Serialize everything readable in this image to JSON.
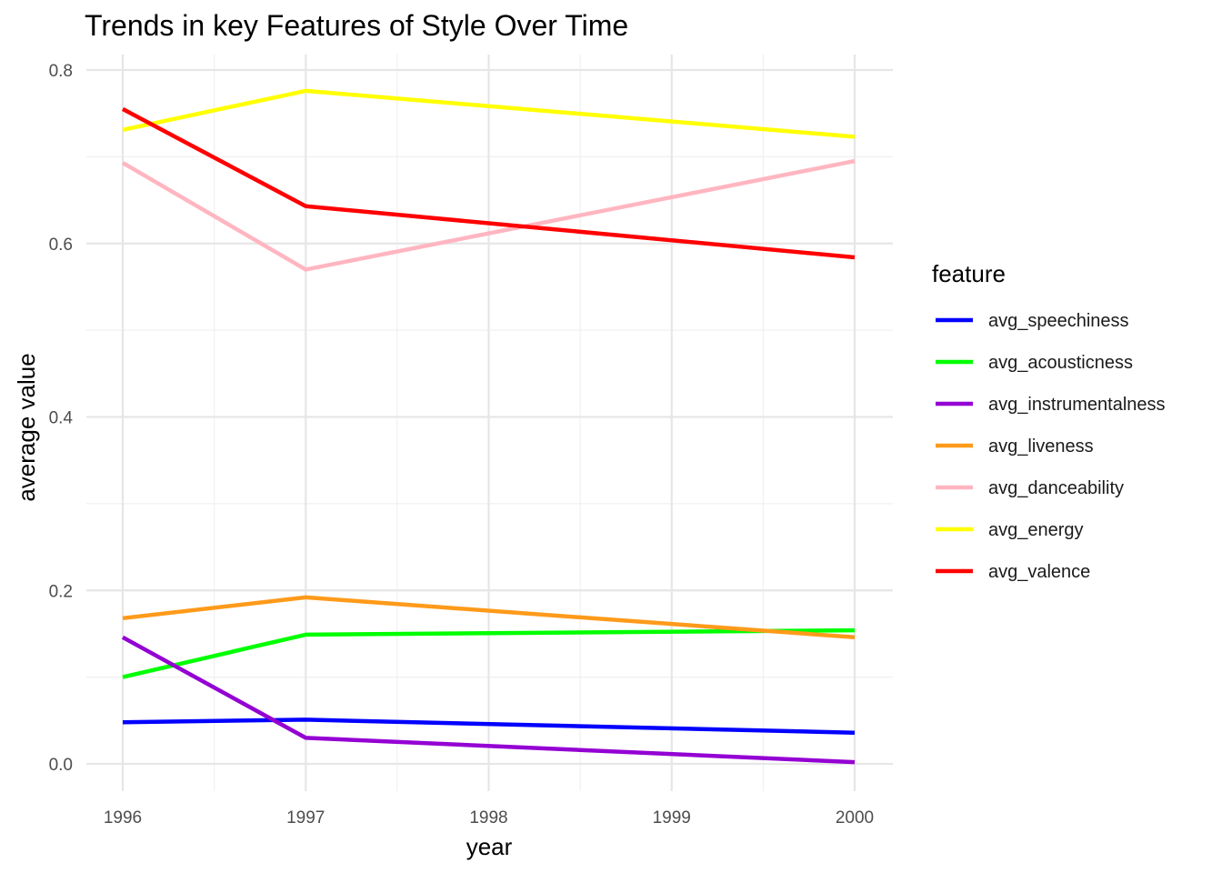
{
  "chart_data": {
    "type": "line",
    "title": "Trends in key Features of Style Over Time",
    "xlabel": "year",
    "ylabel": "average value",
    "x": [
      1996,
      1997,
      2000
    ],
    "x_ticks": [
      "1996",
      "1997",
      "1998",
      "1999",
      "2000"
    ],
    "y_ticks": [
      "0.0",
      "0.2",
      "0.4",
      "0.6",
      "0.8"
    ],
    "xlim": [
      1996,
      2000
    ],
    "ylim": [
      0,
      0.8
    ],
    "grid": true,
    "legend_title": "feature",
    "legend_position": "right",
    "series": [
      {
        "name": "avg_speechiness",
        "color": "#0000FF",
        "values": [
          0.048,
          0.051,
          0.036
        ]
      },
      {
        "name": "avg_acousticness",
        "color": "#00FF00",
        "values": [
          0.1,
          0.149,
          0.154
        ]
      },
      {
        "name": "avg_instrumentalness",
        "color": "#9400D3",
        "values": [
          0.146,
          0.03,
          0.002
        ]
      },
      {
        "name": "avg_liveness",
        "color": "#FF9A1A",
        "values": [
          0.168,
          0.192,
          0.146
        ]
      },
      {
        "name": "avg_danceability",
        "color": "#FFB6C1",
        "values": [
          0.693,
          0.57,
          0.695
        ]
      },
      {
        "name": "avg_energy",
        "color": "#FFFF00",
        "values": [
          0.731,
          0.776,
          0.723
        ]
      },
      {
        "name": "avg_valence",
        "color": "#FF0000",
        "values": [
          0.755,
          0.643,
          0.584
        ]
      }
    ]
  }
}
